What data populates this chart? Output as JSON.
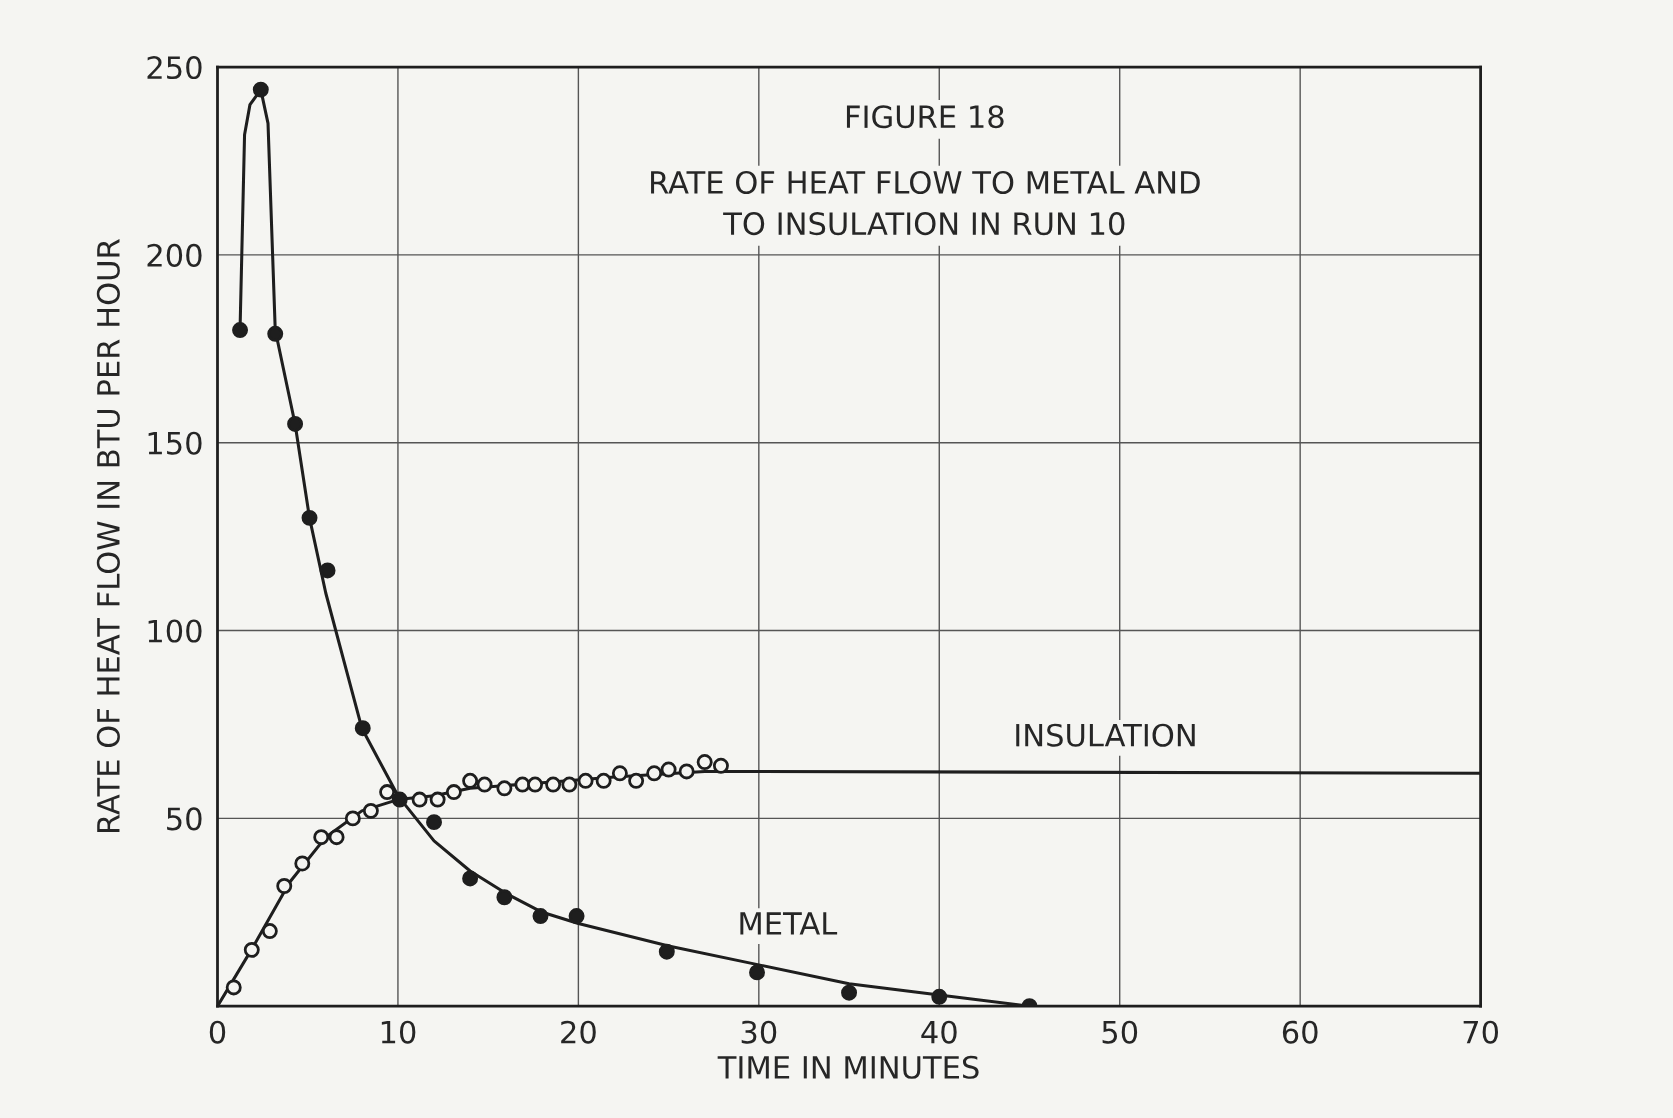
{
  "chart_data": {
    "type": "scatter",
    "title": "FIGURE 18",
    "subtitle": "RATE OF HEAT FLOW TO METAL AND\nTO INSULATION IN RUN 10",
    "xlabel": "TIME IN MINUTES",
    "ylabel": "RATE OF HEAT FLOW IN BTU PER HOUR",
    "xlim": [
      0,
      70
    ],
    "ylim": [
      0,
      250
    ],
    "xticks": [
      0,
      10,
      20,
      30,
      40,
      50,
      60,
      70
    ],
    "yticks": [
      {
        "value": 0,
        "label": null
      },
      50,
      100,
      150,
      200,
      250
    ],
    "grid": true,
    "series": [
      {
        "marker": "circle",
        "color": "#1e1e1e",
        "x": [
          1.25,
          2.4,
          3.2,
          4.3,
          5.1,
          6.1,
          8.05,
          10.1,
          12,
          14,
          15.9,
          17.9,
          19.9,
          24.9,
          29.9,
          35,
          40,
          45
        ],
        "values": [
          180,
          244,
          179,
          155,
          130,
          116,
          74,
          55,
          49,
          34,
          29,
          24,
          24,
          14.5,
          9,
          3.6,
          2.5,
          0
        ]
      },
      {
        "type": "line",
        "name": "METAL",
        "color": "#1e1e1e",
        "x": [
          1.25,
          1.5,
          1.8,
          2.4,
          2.8,
          3.2,
          4.3,
          5.1,
          6,
          7,
          8,
          10,
          12,
          14,
          16,
          18,
          20,
          25,
          30,
          35,
          40,
          45
        ],
        "values": [
          180,
          232,
          240,
          244,
          235,
          180,
          155,
          130,
          110,
          92,
          74,
          56,
          44,
          36,
          30,
          25,
          22,
          16,
          11,
          6,
          3,
          0
        ]
      },
      {
        "marker": "circle",
        "color": "#f5f5f2",
        "x": [
          0.9,
          1.9,
          2.9,
          3.7,
          4.7,
          5.75,
          6.6,
          7.5,
          8.5,
          9.4,
          11.2,
          12.2,
          13.1,
          14,
          14.8,
          15.9,
          16.9,
          17.6,
          18.6,
          19.5,
          20.4,
          21.4,
          22.3,
          23.2,
          24.2,
          25,
          26,
          27,
          27.9
        ],
        "values": [
          5,
          15,
          20,
          32,
          38,
          45,
          45,
          50,
          52,
          57,
          55,
          55,
          57,
          60,
          59,
          58,
          59,
          59,
          59,
          59,
          60,
          60,
          62,
          60,
          62,
          63,
          62.5,
          65,
          64
        ]
      },
      {
        "type": "line",
        "name": "INSULATION",
        "color": "#1e1e1e",
        "x": [
          0,
          2,
          4,
          6,
          8,
          10,
          12,
          14,
          18,
          22,
          27,
          28,
          70
        ],
        "values": [
          0,
          16,
          33,
          45,
          52,
          55,
          56,
          58,
          59.5,
          61,
          62.5,
          62.5,
          62
        ]
      }
    ]
  }
}
